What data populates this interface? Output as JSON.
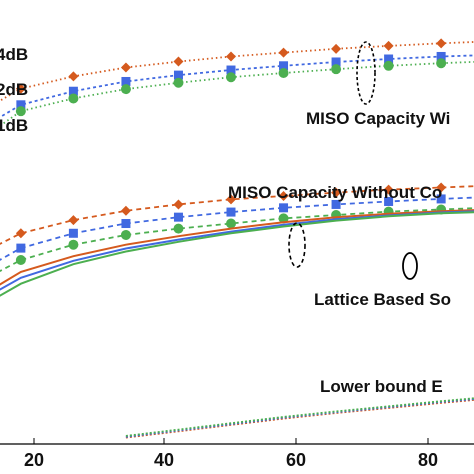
{
  "chart_data": {
    "type": "line",
    "x_ticks": [
      "20",
      "40",
      "60",
      "80"
    ],
    "xlim": [
      12,
      96
    ],
    "ylim": [
      0,
      1
    ],
    "grid": false,
    "legend": [
      {
        "text": "4dB",
        "series_color": "#d55a1e"
      },
      {
        "text": "2dB",
        "series_color": "#4169e1"
      },
      {
        "text": "1dB",
        "series_color": "#4caf50"
      }
    ],
    "annotations": {
      "miso_with": "MISO Capacity Wi",
      "miso_without": "MISO Capacity Without Co",
      "lattice": "Lattice Based So",
      "lower_bound": "Lower bound E"
    },
    "x": [
      12,
      18,
      26,
      34,
      42,
      50,
      58,
      66,
      74,
      82,
      90
    ],
    "series": [
      {
        "group": "miso_with",
        "snr": "4dB",
        "color": "#d55a1e",
        "marker": "diamond",
        "dash": "1.5 3",
        "values": [
          0.785,
          0.838,
          0.867,
          0.888,
          0.902,
          0.914,
          0.923,
          0.932,
          0.939,
          0.945,
          0.95
        ]
      },
      {
        "group": "miso_with",
        "snr": "2dB",
        "color": "#4169e1",
        "marker": "square",
        "dash": "3 3",
        "values": [
          0.745,
          0.8,
          0.832,
          0.855,
          0.87,
          0.882,
          0.892,
          0.901,
          0.908,
          0.914,
          0.918
        ]
      },
      {
        "group": "miso_with",
        "snr": "1dB",
        "color": "#4caf50",
        "marker": "circle",
        "dash": "1.5 3",
        "values": [
          0.72,
          0.785,
          0.815,
          0.837,
          0.852,
          0.865,
          0.875,
          0.884,
          0.892,
          0.898,
          0.903
        ]
      },
      {
        "group": "miso_without",
        "snr": "4dB",
        "color": "#d55a1e",
        "marker": "diamond",
        "dash": "5 4",
        "values": [
          0.45,
          0.497,
          0.528,
          0.55,
          0.565,
          0.577,
          0.585,
          0.593,
          0.6,
          0.605,
          0.61
        ]
      },
      {
        "group": "miso_without",
        "snr": "2dB",
        "color": "#4169e1",
        "marker": "square",
        "dash": "5 4",
        "values": [
          0.41,
          0.462,
          0.497,
          0.52,
          0.535,
          0.547,
          0.557,
          0.565,
          0.572,
          0.578,
          0.583
        ]
      },
      {
        "group": "miso_without",
        "snr": "1dB",
        "color": "#4caf50",
        "marker": "circle",
        "dash": "5 4",
        "values": [
          0.385,
          0.434,
          0.47,
          0.493,
          0.508,
          0.52,
          0.532,
          0.54,
          0.548,
          0.553,
          0.558
        ]
      },
      {
        "group": "lattice",
        "snr": "4dB",
        "color": "#d55a1e",
        "marker": "none",
        "dash": "",
        "values": [
          0.35,
          0.406,
          0.443,
          0.47,
          0.49,
          0.508,
          0.523,
          0.535,
          0.543,
          0.549,
          0.553
        ]
      },
      {
        "group": "lattice",
        "snr": "2dB",
        "color": "#4169e1",
        "marker": "none",
        "dash": "",
        "values": [
          0.34,
          0.392,
          0.432,
          0.461,
          0.482,
          0.501,
          0.517,
          0.53,
          0.539,
          0.546,
          0.55
        ]
      },
      {
        "group": "lattice",
        "snr": "1dB",
        "color": "#4caf50",
        "marker": "none",
        "dash": "",
        "values": [
          0.325,
          0.378,
          0.424,
          0.454,
          0.477,
          0.497,
          0.513,
          0.527,
          0.537,
          0.544,
          0.548
        ]
      },
      {
        "group": "lower_bound",
        "snr": "4dB",
        "color": "#d55a1e",
        "marker": "none",
        "dash": "2 2",
        "values": [
          null,
          null,
          null,
          0.015,
          0.03,
          0.045,
          0.06,
          0.073,
          0.085,
          0.097,
          0.108
        ]
      },
      {
        "group": "lower_bound",
        "snr": "2dB",
        "color": "#4169e1",
        "marker": "none",
        "dash": "2 2",
        "values": [
          null,
          null,
          null,
          0.017,
          0.032,
          0.047,
          0.062,
          0.075,
          0.087,
          0.099,
          0.11
        ]
      },
      {
        "group": "lower_bound",
        "snr": "1dB",
        "color": "#4caf50",
        "marker": "none",
        "dash": "2 2",
        "values": [
          null,
          null,
          null,
          0.019,
          0.034,
          0.049,
          0.064,
          0.077,
          0.089,
          0.101,
          0.112
        ]
      }
    ]
  }
}
